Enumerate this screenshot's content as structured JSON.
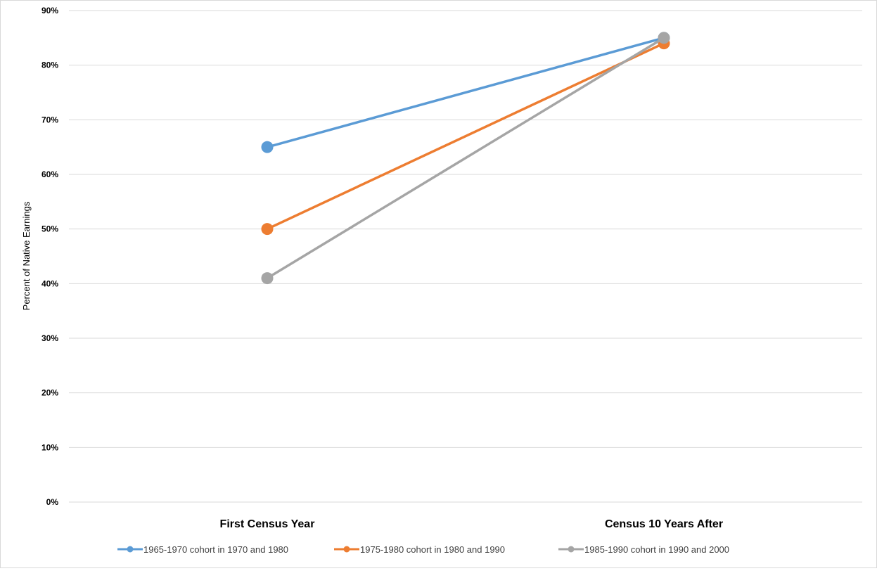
{
  "chart_data": {
    "type": "line",
    "title": "",
    "xlabel": "",
    "ylabel": "Percent of Native Earnings",
    "categories": [
      "First Census Year",
      "Census 10 Years After"
    ],
    "ylim": [
      0,
      90
    ],
    "yticks": [
      "0%",
      "10%",
      "20%",
      "30%",
      "40%",
      "50%",
      "60%",
      "70%",
      "80%",
      "90%"
    ],
    "grid": true,
    "legend_position": "bottom",
    "series": [
      {
        "name": "1965-1970 cohort in 1970 and 1980",
        "values": [
          65,
          85
        ],
        "color": "#5b9bd5"
      },
      {
        "name": "1975-1980 cohort in 1980 and 1990",
        "values": [
          50,
          84
        ],
        "color": "#ed7d31"
      },
      {
        "name": "1985-1990 cohort in 1990 and 2000",
        "values": [
          41,
          85
        ],
        "color": "#a5a5a5"
      }
    ]
  }
}
